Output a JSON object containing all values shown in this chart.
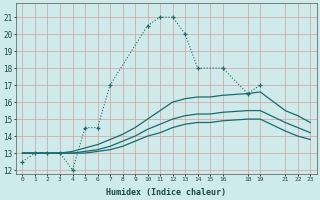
{
  "xlabel": "Humidex (Indice chaleur)",
  "bg_color": "#ceeaea",
  "grid_color": "#d4a0a0",
  "line_color": "#1a6b6b",
  "xlim": [
    -0.5,
    23.5
  ],
  "ylim": [
    11.8,
    21.8
  ],
  "xtick_vals": [
    0,
    1,
    2,
    3,
    4,
    5,
    6,
    7,
    8,
    9,
    10,
    11,
    12,
    13,
    14,
    15,
    16,
    18,
    19,
    21,
    22,
    23
  ],
  "ytick_vals": [
    12,
    13,
    14,
    15,
    16,
    17,
    18,
    19,
    20,
    21
  ],
  "line_dotted": {
    "x": [
      0,
      1,
      2,
      3,
      4,
      5,
      6,
      7,
      10,
      11,
      12,
      13,
      14,
      16,
      18,
      19
    ],
    "y": [
      12.5,
      13,
      13,
      13,
      12,
      14.5,
      14.5,
      17,
      20.5,
      21,
      21,
      20,
      18,
      18,
      16.5,
      17
    ]
  },
  "line_solid1": {
    "x": [
      0,
      1,
      2,
      3,
      4,
      5,
      6,
      7,
      8,
      9,
      10,
      11,
      12,
      13,
      14,
      15,
      16,
      18,
      19,
      21,
      22,
      23
    ],
    "y": [
      13.0,
      13.0,
      13.0,
      13.0,
      13.1,
      13.3,
      13.5,
      13.8,
      14.1,
      14.5,
      15.0,
      15.5,
      16.0,
      16.2,
      16.3,
      16.3,
      16.4,
      16.5,
      16.6,
      15.5,
      15.2,
      14.8
    ]
  },
  "line_solid2": {
    "x": [
      0,
      1,
      2,
      3,
      4,
      5,
      6,
      7,
      8,
      9,
      10,
      11,
      12,
      13,
      14,
      15,
      16,
      18,
      19,
      21,
      22,
      23
    ],
    "y": [
      13.0,
      13.0,
      13.0,
      13.0,
      13.0,
      13.1,
      13.2,
      13.4,
      13.7,
      14.0,
      14.4,
      14.7,
      15.0,
      15.2,
      15.3,
      15.3,
      15.4,
      15.5,
      15.5,
      14.8,
      14.5,
      14.2
    ]
  },
  "line_solid3": {
    "x": [
      0,
      1,
      2,
      3,
      4,
      5,
      6,
      7,
      8,
      9,
      10,
      11,
      12,
      13,
      14,
      15,
      16,
      18,
      19,
      21,
      22,
      23
    ],
    "y": [
      13.0,
      13.0,
      13.0,
      13.0,
      13.0,
      13.0,
      13.1,
      13.2,
      13.4,
      13.7,
      14.0,
      14.2,
      14.5,
      14.7,
      14.8,
      14.8,
      14.9,
      15.0,
      15.0,
      14.3,
      14.0,
      13.8
    ]
  }
}
